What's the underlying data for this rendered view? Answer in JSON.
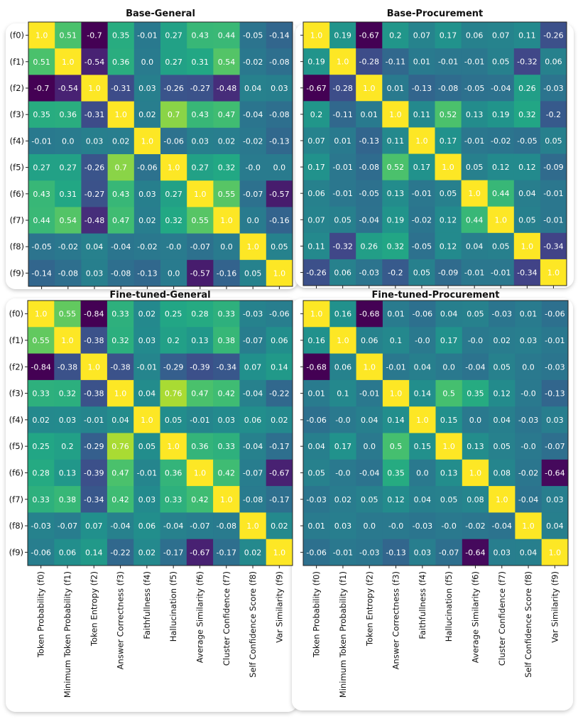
{
  "chart_data": [
    {
      "type": "heatmap",
      "title": "Base-General",
      "colormap": "viridis",
      "row_labels": [
        "(f0)",
        "(f1)",
        "(f2)",
        "(f3)",
        "(f4)",
        "(f5)",
        "(f6)",
        "(f7)",
        "(f8)",
        "(f9)"
      ],
      "col_labels": [],
      "values": [
        [
          1.0,
          0.51,
          -0.7,
          0.35,
          -0.01,
          0.27,
          0.43,
          0.44,
          -0.05,
          -0.14
        ],
        [
          0.51,
          1.0,
          -0.54,
          0.36,
          0.0,
          0.27,
          0.31,
          0.54,
          -0.02,
          -0.08
        ],
        [
          -0.7,
          -0.54,
          1.0,
          -0.31,
          0.03,
          -0.26,
          -0.27,
          -0.48,
          0.04,
          0.03
        ],
        [
          0.35,
          0.36,
          -0.31,
          1.0,
          0.02,
          0.7,
          0.43,
          0.47,
          -0.04,
          -0.08
        ],
        [
          -0.01,
          0.0,
          0.03,
          0.02,
          1.0,
          -0.06,
          0.03,
          0.02,
          -0.02,
          -0.13
        ],
        [
          0.27,
          0.27,
          -0.26,
          0.7,
          -0.06,
          1.0,
          0.27,
          0.32,
          -0.0,
          0.0
        ],
        [
          0.43,
          0.31,
          -0.27,
          0.43,
          0.03,
          0.27,
          1.0,
          0.55,
          -0.07,
          -0.57
        ],
        [
          0.44,
          0.54,
          -0.48,
          0.47,
          0.02,
          0.32,
          0.55,
          1.0,
          0.0,
          -0.16
        ],
        [
          -0.05,
          -0.02,
          0.04,
          -0.04,
          -0.02,
          -0.0,
          -0.07,
          0.0,
          1.0,
          0.05
        ],
        [
          -0.14,
          -0.08,
          0.03,
          -0.08,
          -0.13,
          0.0,
          -0.57,
          -0.16,
          0.05,
          1.0
        ]
      ]
    },
    {
      "type": "heatmap",
      "title": "Base-Procurement",
      "colormap": "viridis",
      "row_labels": [],
      "col_labels": [],
      "values": [
        [
          1.0,
          0.19,
          -0.67,
          0.2,
          0.07,
          0.17,
          0.06,
          0.07,
          0.11,
          -0.26
        ],
        [
          0.19,
          1.0,
          -0.28,
          -0.11,
          0.01,
          -0.01,
          -0.01,
          0.05,
          -0.32,
          0.06
        ],
        [
          -0.67,
          -0.28,
          1.0,
          0.01,
          -0.13,
          -0.08,
          -0.05,
          -0.04,
          0.26,
          -0.03
        ],
        [
          0.2,
          -0.11,
          0.01,
          1.0,
          0.11,
          0.52,
          0.13,
          0.19,
          0.32,
          -0.2
        ],
        [
          0.07,
          0.01,
          -0.13,
          0.11,
          1.0,
          0.17,
          -0.01,
          -0.02,
          -0.05,
          0.05
        ],
        [
          0.17,
          -0.01,
          -0.08,
          0.52,
          0.17,
          1.0,
          0.05,
          0.12,
          0.12,
          -0.09
        ],
        [
          0.06,
          -0.01,
          -0.05,
          0.13,
          -0.01,
          0.05,
          1.0,
          0.44,
          0.04,
          -0.01
        ],
        [
          0.07,
          0.05,
          -0.04,
          0.19,
          -0.02,
          0.12,
          0.44,
          1.0,
          0.05,
          -0.01
        ],
        [
          0.11,
          -0.32,
          0.26,
          0.32,
          -0.05,
          0.12,
          0.04,
          0.05,
          1.0,
          -0.34
        ],
        [
          -0.26,
          0.06,
          -0.03,
          -0.2,
          0.05,
          -0.09,
          -0.01,
          -0.01,
          -0.34,
          1.0
        ]
      ]
    },
    {
      "type": "heatmap",
      "title": "Fine-tuned-General",
      "colormap": "viridis",
      "row_labels": [
        "(f0)",
        "(f1)",
        "(f2)",
        "(f3)",
        "(f4)",
        "(f5)",
        "(f6)",
        "(f7)",
        "(f8)",
        "(f9)"
      ],
      "col_labels": [
        "Token Probability (f0)",
        "Minimum Token Probability (f1)",
        "Token Entropy (f2)",
        "Answer Correctness (f3)",
        "Faithfullness (f4)",
        "Hallucination (f5)",
        "Average Similarity (f6)",
        "Cluster Confidence (f7)",
        "Self Confidence Score (f8)",
        "Var Similarity (f9)"
      ],
      "values": [
        [
          1.0,
          0.55,
          -0.84,
          0.33,
          0.02,
          0.25,
          0.28,
          0.33,
          -0.03,
          -0.06
        ],
        [
          0.55,
          1.0,
          -0.38,
          0.32,
          0.03,
          0.2,
          0.13,
          0.38,
          -0.07,
          0.06
        ],
        [
          -0.84,
          -0.38,
          1.0,
          -0.38,
          -0.01,
          -0.29,
          -0.39,
          -0.34,
          0.07,
          0.14
        ],
        [
          0.33,
          0.32,
          -0.38,
          1.0,
          0.04,
          0.76,
          0.47,
          0.42,
          -0.04,
          -0.22
        ],
        [
          0.02,
          0.03,
          -0.01,
          0.04,
          1.0,
          0.05,
          -0.01,
          0.03,
          0.06,
          0.02
        ],
        [
          0.25,
          0.2,
          -0.29,
          0.76,
          0.05,
          1.0,
          0.36,
          0.33,
          -0.04,
          -0.17
        ],
        [
          0.28,
          0.13,
          -0.39,
          0.47,
          -0.01,
          0.36,
          1.0,
          0.42,
          -0.07,
          -0.67
        ],
        [
          0.33,
          0.38,
          -0.34,
          0.42,
          0.03,
          0.33,
          0.42,
          1.0,
          -0.08,
          -0.17
        ],
        [
          -0.03,
          -0.07,
          0.07,
          -0.04,
          0.06,
          -0.04,
          -0.07,
          -0.08,
          1.0,
          0.02
        ],
        [
          -0.06,
          0.06,
          0.14,
          -0.22,
          0.02,
          -0.17,
          -0.67,
          -0.17,
          0.02,
          1.0
        ]
      ]
    },
    {
      "type": "heatmap",
      "title": "Fine-tuned-Procurement",
      "colormap": "viridis",
      "row_labels": [],
      "col_labels": [
        "Token Probability (f0)",
        "Minimum Token Probability (f1)",
        "Token Entropy (f2)",
        "Answer Correctness (f3)",
        "Faithfullness (f4)",
        "Hallucination (f5)",
        "Average Similarity (f6)",
        "Cluster Confidence (f7)",
        "Self Confidence Score (f8)",
        "Var Similarity (f9)"
      ],
      "values": [
        [
          1.0,
          0.16,
          -0.68,
          0.01,
          -0.06,
          0.04,
          0.05,
          -0.03,
          0.01,
          -0.06
        ],
        [
          0.16,
          1.0,
          0.06,
          0.1,
          -0.0,
          0.17,
          -0.0,
          0.02,
          0.03,
          -0.01
        ],
        [
          -0.68,
          0.06,
          1.0,
          -0.01,
          0.04,
          0.0,
          -0.04,
          0.05,
          0.0,
          -0.03
        ],
        [
          0.01,
          0.1,
          -0.01,
          1.0,
          0.14,
          0.5,
          0.35,
          0.12,
          -0.0,
          -0.13
        ],
        [
          -0.06,
          -0.0,
          0.04,
          0.14,
          1.0,
          0.15,
          0.0,
          0.04,
          -0.03,
          0.03
        ],
        [
          0.04,
          0.17,
          0.0,
          0.5,
          0.15,
          1.0,
          0.13,
          0.05,
          -0.0,
          -0.07
        ],
        [
          0.05,
          -0.0,
          -0.04,
          0.35,
          0.0,
          0.13,
          1.0,
          0.08,
          -0.02,
          -0.64
        ],
        [
          -0.03,
          0.02,
          0.05,
          0.12,
          0.04,
          0.05,
          0.08,
          1.0,
          -0.04,
          0.03
        ],
        [
          0.01,
          0.03,
          0.0,
          -0.0,
          -0.03,
          -0.0,
          -0.02,
          -0.04,
          1.0,
          0.04
        ],
        [
          -0.06,
          -0.01,
          -0.03,
          -0.13,
          0.03,
          -0.07,
          -0.64,
          0.03,
          0.04,
          1.0
        ]
      ]
    }
  ]
}
